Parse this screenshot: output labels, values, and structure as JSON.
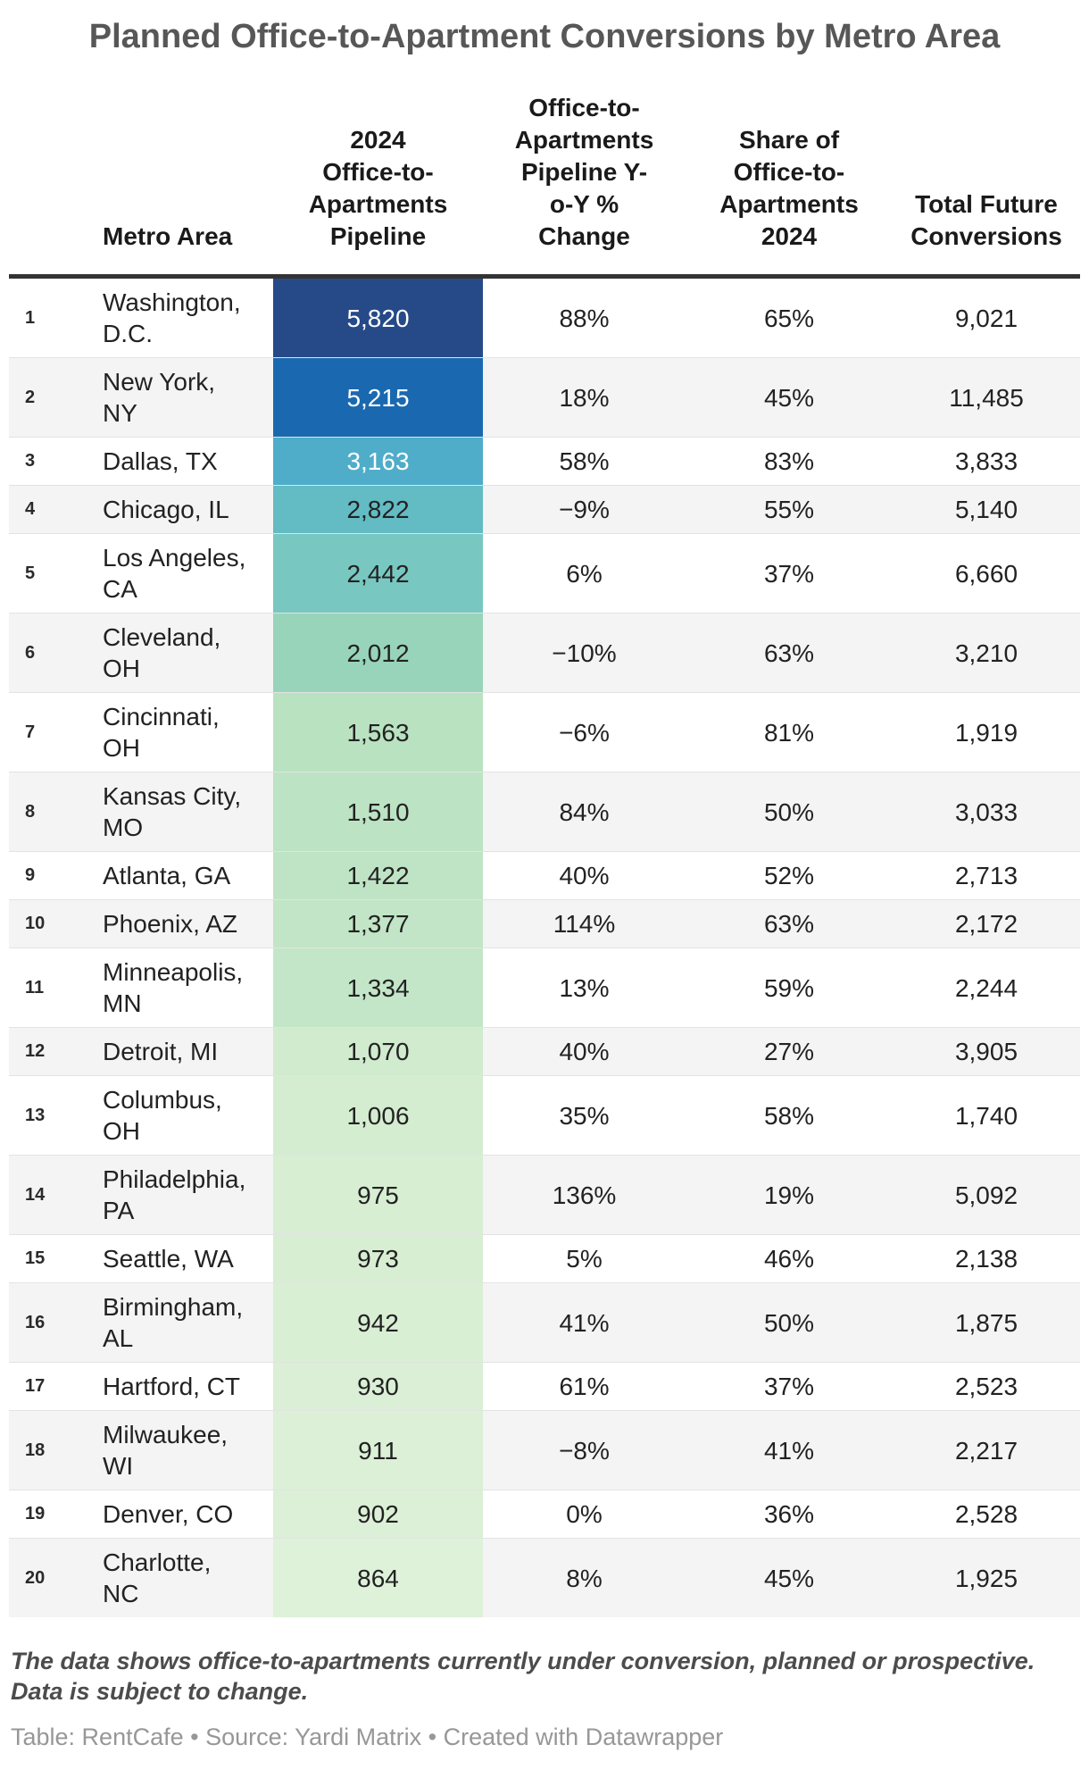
{
  "title": "Planned Office-to-Apartment Conversions by Metro Area",
  "table": {
    "columns": [
      {
        "key": "rank",
        "label": ""
      },
      {
        "key": "metro",
        "label": "Metro Area"
      },
      {
        "key": "pipeline",
        "label": "2024\nOffice-to-\nApartments\nPipeline"
      },
      {
        "key": "yoy",
        "label": "Office-to-\nApartments\nPipeline Y-\no-Y %\nChange"
      },
      {
        "key": "share",
        "label": "Share of\nOffice-to-\nApartments\n2024"
      },
      {
        "key": "total",
        "label": "Total Future\nConversions"
      }
    ],
    "rows": [
      {
        "rank": "1",
        "metro": "Washington,\nD.C.",
        "pipeline": "5,820",
        "pipeline_color": "#264a88",
        "pipeline_text_color": "#ffffff",
        "yoy": "88%",
        "share": "65%",
        "total": "9,021"
      },
      {
        "rank": "2",
        "metro": "New York,\nNY",
        "pipeline": "5,215",
        "pipeline_color": "#1a69b0",
        "pipeline_text_color": "#ffffff",
        "yoy": "18%",
        "share": "45%",
        "total": "11,485"
      },
      {
        "rank": "3",
        "metro": "Dallas, TX",
        "pipeline": "3,163",
        "pipeline_color": "#4fadc9",
        "pipeline_text_color": "#ffffff",
        "yoy": "58%",
        "share": "83%",
        "total": "3,833"
      },
      {
        "rank": "4",
        "metro": "Chicago, IL",
        "pipeline": "2,822",
        "pipeline_color": "#63bbc3",
        "pipeline_text_color": "#222222",
        "yoy": "−9%",
        "share": "55%",
        "total": "5,140"
      },
      {
        "rank": "5",
        "metro": "Los Angeles,\nCA",
        "pipeline": "2,442",
        "pipeline_color": "#79c7c1",
        "pipeline_text_color": "#222222",
        "yoy": "6%",
        "share": "37%",
        "total": "6,660"
      },
      {
        "rank": "6",
        "metro": "Cleveland,\nOH",
        "pipeline": "2,012",
        "pipeline_color": "#98d4b9",
        "pipeline_text_color": "#222222",
        "yoy": "−10%",
        "share": "63%",
        "total": "3,210"
      },
      {
        "rank": "7",
        "metro": "Cincinnati,\nOH",
        "pipeline": "1,563",
        "pipeline_color": "#b9e2c1",
        "pipeline_text_color": "#222222",
        "yoy": "−6%",
        "share": "81%",
        "total": "1,919"
      },
      {
        "rank": "8",
        "metro": "Kansas City,\nMO",
        "pipeline": "1,510",
        "pipeline_color": "#bce3c3",
        "pipeline_text_color": "#222222",
        "yoy": "84%",
        "share": "50%",
        "total": "3,033"
      },
      {
        "rank": "9",
        "metro": "Atlanta, GA",
        "pipeline": "1,422",
        "pipeline_color": "#bfe4c5",
        "pipeline_text_color": "#222222",
        "yoy": "40%",
        "share": "52%",
        "total": "2,713"
      },
      {
        "rank": "10",
        "metro": "Phoenix, AZ",
        "pipeline": "1,377",
        "pipeline_color": "#c1e5c6",
        "pipeline_text_color": "#222222",
        "yoy": "114%",
        "share": "63%",
        "total": "2,172"
      },
      {
        "rank": "11",
        "metro": "Minneapolis,\nMN",
        "pipeline": "1,334",
        "pipeline_color": "#c3e6c8",
        "pipeline_text_color": "#222222",
        "yoy": "13%",
        "share": "59%",
        "total": "2,244"
      },
      {
        "rank": "12",
        "metro": "Detroit, MI",
        "pipeline": "1,070",
        "pipeline_color": "#d0ebce",
        "pipeline_text_color": "#222222",
        "yoy": "40%",
        "share": "27%",
        "total": "3,905"
      },
      {
        "rank": "13",
        "metro": "Columbus,\nOH",
        "pipeline": "1,006",
        "pipeline_color": "#d4edd0",
        "pipeline_text_color": "#222222",
        "yoy": "35%",
        "share": "58%",
        "total": "1,740"
      },
      {
        "rank": "14",
        "metro": "Philadelphia,\nPA",
        "pipeline": "975",
        "pipeline_color": "#d7eed2",
        "pipeline_text_color": "#222222",
        "yoy": "136%",
        "share": "19%",
        "total": "5,092"
      },
      {
        "rank": "15",
        "metro": "Seattle, WA",
        "pipeline": "973",
        "pipeline_color": "#d7eed2",
        "pipeline_text_color": "#222222",
        "yoy": "5%",
        "share": "46%",
        "total": "2,138"
      },
      {
        "rank": "16",
        "metro": "Birmingham,\nAL",
        "pipeline": "942",
        "pipeline_color": "#d9efd4",
        "pipeline_text_color": "#222222",
        "yoy": "41%",
        "share": "50%",
        "total": "1,875"
      },
      {
        "rank": "17",
        "metro": "Hartford, CT",
        "pipeline": "930",
        "pipeline_color": "#daefd5",
        "pipeline_text_color": "#222222",
        "yoy": "61%",
        "share": "37%",
        "total": "2,523"
      },
      {
        "rank": "18",
        "metro": "Milwaukee,\nWI",
        "pipeline": "911",
        "pipeline_color": "#dbf0d6",
        "pipeline_text_color": "#222222",
        "yoy": "−8%",
        "share": "41%",
        "total": "2,217"
      },
      {
        "rank": "19",
        "metro": "Denver, CO",
        "pipeline": "902",
        "pipeline_color": "#dcf0d7",
        "pipeline_text_color": "#222222",
        "yoy": "0%",
        "share": "36%",
        "total": "2,528"
      },
      {
        "rank": "20",
        "metro": "Charlotte,\nNC",
        "pipeline": "864",
        "pipeline_color": "#def1d9",
        "pipeline_text_color": "#222222",
        "yoy": "8%",
        "share": "45%",
        "total": "1,925"
      }
    ]
  },
  "footnote": "The data shows office-to-apartments currently under conversion, planned or prospective. Data is subject to change.",
  "caption": "Table: RentCafe • Source: Yardi Matrix • Created with Datawrapper",
  "chart_data": {
    "type": "table",
    "title": "Planned Office-to-Apartment Conversions by Metro Area",
    "columns": [
      "Metro Area",
      "2024 Office-to-Apartments Pipeline",
      "Office-to-Apartments Pipeline Y-o-Y % Change",
      "Share of Office-to-Apartments 2024",
      "Total Future Conversions"
    ],
    "rows": [
      {
        "rank": 1,
        "metro": "Washington, D.C.",
        "pipeline_2024": 5820,
        "yoy_pct_change": 88,
        "share_2024_pct": 65,
        "total_future_conversions": 9021
      },
      {
        "rank": 2,
        "metro": "New York, NY",
        "pipeline_2024": 5215,
        "yoy_pct_change": 18,
        "share_2024_pct": 45,
        "total_future_conversions": 11485
      },
      {
        "rank": 3,
        "metro": "Dallas, TX",
        "pipeline_2024": 3163,
        "yoy_pct_change": 58,
        "share_2024_pct": 83,
        "total_future_conversions": 3833
      },
      {
        "rank": 4,
        "metro": "Chicago, IL",
        "pipeline_2024": 2822,
        "yoy_pct_change": -9,
        "share_2024_pct": 55,
        "total_future_conversions": 5140
      },
      {
        "rank": 5,
        "metro": "Los Angeles, CA",
        "pipeline_2024": 2442,
        "yoy_pct_change": 6,
        "share_2024_pct": 37,
        "total_future_conversions": 6660
      },
      {
        "rank": 6,
        "metro": "Cleveland, OH",
        "pipeline_2024": 2012,
        "yoy_pct_change": -10,
        "share_2024_pct": 63,
        "total_future_conversions": 3210
      },
      {
        "rank": 7,
        "metro": "Cincinnati, OH",
        "pipeline_2024": 1563,
        "yoy_pct_change": -6,
        "share_2024_pct": 81,
        "total_future_conversions": 1919
      },
      {
        "rank": 8,
        "metro": "Kansas City, MO",
        "pipeline_2024": 1510,
        "yoy_pct_change": 84,
        "share_2024_pct": 50,
        "total_future_conversions": 3033
      },
      {
        "rank": 9,
        "metro": "Atlanta, GA",
        "pipeline_2024": 1422,
        "yoy_pct_change": 40,
        "share_2024_pct": 52,
        "total_future_conversions": 2713
      },
      {
        "rank": 10,
        "metro": "Phoenix, AZ",
        "pipeline_2024": 1377,
        "yoy_pct_change": 114,
        "share_2024_pct": 63,
        "total_future_conversions": 2172
      },
      {
        "rank": 11,
        "metro": "Minneapolis, MN",
        "pipeline_2024": 1334,
        "yoy_pct_change": 13,
        "share_2024_pct": 59,
        "total_future_conversions": 2244
      },
      {
        "rank": 12,
        "metro": "Detroit, MI",
        "pipeline_2024": 1070,
        "yoy_pct_change": 40,
        "share_2024_pct": 27,
        "total_future_conversions": 3905
      },
      {
        "rank": 13,
        "metro": "Columbus, OH",
        "pipeline_2024": 1006,
        "yoy_pct_change": 35,
        "share_2024_pct": 58,
        "total_future_conversions": 1740
      },
      {
        "rank": 14,
        "metro": "Philadelphia, PA",
        "pipeline_2024": 975,
        "yoy_pct_change": 136,
        "share_2024_pct": 19,
        "total_future_conversions": 5092
      },
      {
        "rank": 15,
        "metro": "Seattle, WA",
        "pipeline_2024": 973,
        "yoy_pct_change": 5,
        "share_2024_pct": 46,
        "total_future_conversions": 2138
      },
      {
        "rank": 16,
        "metro": "Birmingham, AL",
        "pipeline_2024": 942,
        "yoy_pct_change": 41,
        "share_2024_pct": 50,
        "total_future_conversions": 1875
      },
      {
        "rank": 17,
        "metro": "Hartford, CT",
        "pipeline_2024": 930,
        "yoy_pct_change": 61,
        "share_2024_pct": 37,
        "total_future_conversions": 2523
      },
      {
        "rank": 18,
        "metro": "Milwaukee, WI",
        "pipeline_2024": 911,
        "yoy_pct_change": -8,
        "share_2024_pct": 41,
        "total_future_conversions": 2217
      },
      {
        "rank": 19,
        "metro": "Denver, CO",
        "pipeline_2024": 902,
        "yoy_pct_change": 0,
        "share_2024_pct": 36,
        "total_future_conversions": 2528
      },
      {
        "rank": 20,
        "metro": "Charlotte, NC",
        "pipeline_2024": 864,
        "yoy_pct_change": 8,
        "share_2024_pct": 45,
        "total_future_conversions": 1925
      }
    ]
  }
}
